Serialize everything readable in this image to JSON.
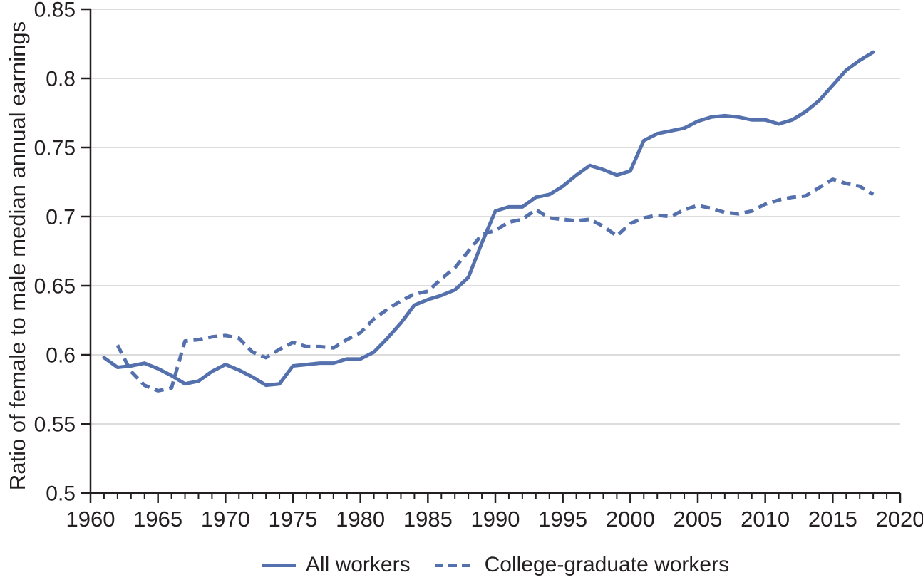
{
  "figure": {
    "ylabel": "Ratio of female to male median annual earnings"
  },
  "colors": {
    "line": "#5571ad",
    "axis": "#231f20",
    "grid": "#dcdcdc",
    "text": "#231f20",
    "background": "#ffffff"
  },
  "legend": {
    "items": [
      {
        "label": "All workers",
        "style": "solid"
      },
      {
        "label": "College-graduate workers",
        "style": "dashed"
      }
    ]
  },
  "chart_data": {
    "type": "line",
    "title": "",
    "xlabel": "",
    "ylabel": "Ratio of female to male median annual earnings",
    "xlim": [
      1960,
      2020
    ],
    "ylim": [
      0.5,
      0.85
    ],
    "x_ticks": [
      1960,
      1965,
      1970,
      1975,
      1980,
      1985,
      1990,
      1995,
      2000,
      2005,
      2010,
      2015,
      2020
    ],
    "x_minor_tick_step": 1,
    "y_ticks": [
      0.5,
      0.55,
      0.6,
      0.65,
      0.7,
      0.75,
      0.8,
      0.85
    ],
    "y_tick_labels": [
      "0.5",
      "0.55",
      "0.6",
      "0.65",
      "0.7",
      "0.75",
      "0.8",
      "0.85"
    ],
    "grid_values": [
      0.55,
      0.6,
      0.65,
      0.7,
      0.75,
      0.8,
      0.85
    ],
    "grid": "horizontal",
    "legend_position": "bottom",
    "series": [
      {
        "name": "All workers",
        "style": "solid",
        "x_start": 1961,
        "x_step": 1,
        "values": [
          0.598,
          0.591,
          0.592,
          0.594,
          0.59,
          0.585,
          0.579,
          0.581,
          0.588,
          0.593,
          0.589,
          0.584,
          0.578,
          0.579,
          0.592,
          0.593,
          0.594,
          0.594,
          0.597,
          0.597,
          0.602,
          0.612,
          0.623,
          0.636,
          0.64,
          0.643,
          0.647,
          0.656,
          0.681,
          0.704,
          0.707,
          0.707,
          0.714,
          0.716,
          0.722,
          0.73,
          0.737,
          0.734,
          0.73,
          0.733,
          0.755,
          0.76,
          0.762,
          0.764,
          0.769,
          0.772,
          0.773,
          0.772,
          0.77,
          0.77,
          0.767,
          0.77,
          0.776,
          0.784,
          0.795,
          0.806,
          0.813,
          0.819
        ]
      },
      {
        "name": "College-graduate workers",
        "style": "dashed",
        "x_start": 1962,
        "x_step": 1,
        "values": [
          0.607,
          0.588,
          0.578,
          0.574,
          0.576,
          0.61,
          0.611,
          0.613,
          0.614,
          0.612,
          0.602,
          0.598,
          0.604,
          0.609,
          0.606,
          0.606,
          0.605,
          0.611,
          0.616,
          0.626,
          0.633,
          0.639,
          0.644,
          0.646,
          0.655,
          0.663,
          0.675,
          0.687,
          0.69,
          0.696,
          0.698,
          0.705,
          0.699,
          0.698,
          0.697,
          0.698,
          0.693,
          0.686,
          0.695,
          0.699,
          0.701,
          0.7,
          0.705,
          0.708,
          0.706,
          0.703,
          0.702,
          0.704,
          0.709,
          0.712,
          0.714,
          0.715,
          0.721,
          0.727,
          0.724,
          0.722,
          0.716
        ]
      }
    ]
  }
}
